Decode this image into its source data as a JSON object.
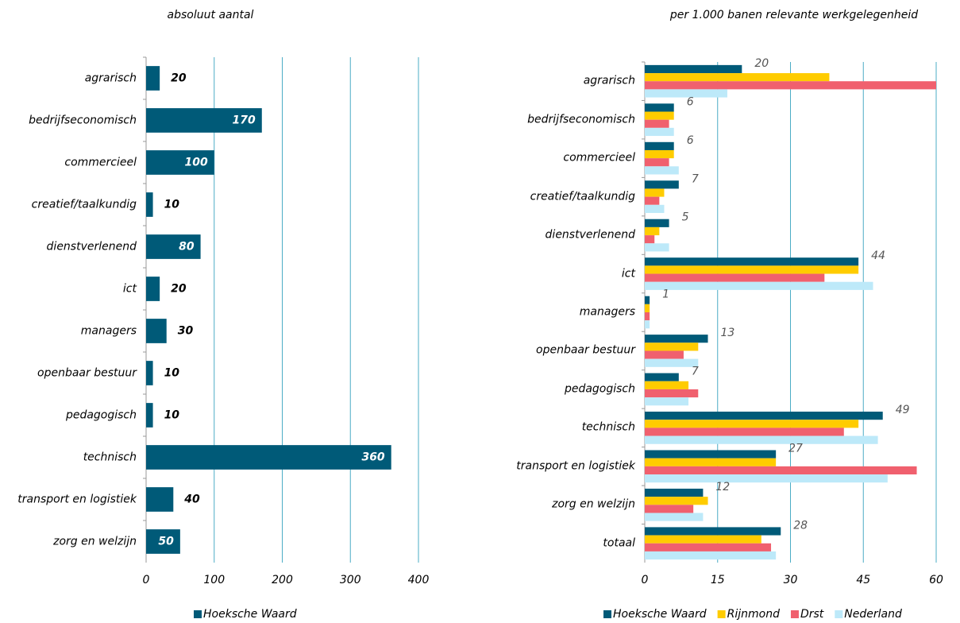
{
  "chart_data": [
    {
      "type": "bar",
      "orientation": "horizontal",
      "title": "absoluut aantal",
      "categories": [
        "agrarisch",
        "bedrijfseconomisch",
        "commercieel",
        "creatief/taalkundig",
        "dienstverlenend",
        "ict",
        "managers",
        "openbaar bestuur",
        "pedagogisch",
        "technisch",
        "transport en logistiek",
        "zorg en welzijn"
      ],
      "series": [
        {
          "name": "Hoeksche Waard",
          "color": "#005a78",
          "values": [
            20,
            170,
            100,
            10,
            80,
            20,
            30,
            10,
            10,
            360,
            40,
            50
          ]
        }
      ],
      "xlim": [
        0,
        400
      ],
      "xticks": [
        0,
        100,
        200,
        300,
        400
      ],
      "grid": true,
      "legend": "bottom"
    },
    {
      "type": "bar",
      "orientation": "horizontal",
      "title": "per 1.000 banen relevante werkgelegenheid",
      "categories": [
        "agrarisch",
        "bedrijfseconomisch",
        "commercieel",
        "creatief/taalkundig",
        "dienstverlenend",
        "ict",
        "managers",
        "openbaar bestuur",
        "pedagogisch",
        "technisch",
        "transport en logistiek",
        "zorg en welzijn",
        "totaal"
      ],
      "series": [
        {
          "name": "Hoeksche Waard",
          "color": "#005a78",
          "values": [
            20,
            6,
            6,
            7,
            5,
            44,
            1,
            13,
            7,
            49,
            27,
            12,
            28
          ]
        },
        {
          "name": "Rijnmond",
          "color": "#ffcc00",
          "values": [
            38,
            6,
            6,
            4,
            3,
            44,
            1,
            11,
            9,
            44,
            27,
            13,
            24
          ]
        },
        {
          "name": "Drst",
          "color": "#f0606e",
          "values": [
            60,
            5,
            5,
            3,
            2,
            37,
            1,
            8,
            11,
            41,
            56,
            10,
            26
          ]
        },
        {
          "name": "Nederland",
          "color": "#bde9f9",
          "values": [
            17,
            6,
            7,
            4,
            5,
            47,
            1,
            11,
            9,
            48,
            50,
            12,
            27
          ]
        }
      ],
      "labeled_series": 0,
      "xlim": [
        0,
        60
      ],
      "xticks": [
        0,
        15,
        30,
        45,
        60
      ],
      "grid": true,
      "legend": "bottom"
    }
  ]
}
